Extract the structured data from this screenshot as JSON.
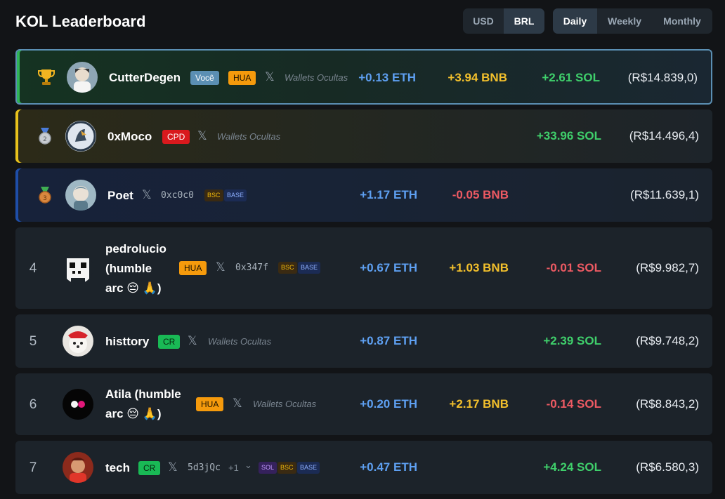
{
  "header": {
    "title": "KOL Leaderboard"
  },
  "currency_toggle": [
    {
      "label": "USD",
      "active": false
    },
    {
      "label": "BRL",
      "active": true
    }
  ],
  "period_toggle": [
    {
      "label": "Daily",
      "active": true
    },
    {
      "label": "Weekly",
      "active": false
    },
    {
      "label": "Monthly",
      "active": false
    }
  ],
  "rows": [
    {
      "rank_icon": "trophy-icon",
      "name": "CutterDegen",
      "badges": [
        "Você",
        "HUA"
      ],
      "wallet": "Wallets Ocultas",
      "eth": "+0.13 ETH",
      "bnb": "+3.94 BNB",
      "sol": "+2.61 SOL",
      "total": "(R$14.839,0)"
    },
    {
      "rank_icon": "silver-medal-icon",
      "name": "0xMoco",
      "badges": [
        "CPD"
      ],
      "wallet": "Wallets Ocultas",
      "eth": "",
      "bnb": "",
      "sol": "+33.96 SOL",
      "total": "(R$14.496,4)"
    },
    {
      "rank_icon": "bronze-medal-icon",
      "name": "Poet",
      "badges": [],
      "wallet": "0xc0c0",
      "chains": [
        "BSC",
        "BASE"
      ],
      "eth": "+1.17 ETH",
      "bnb": "-0.05 BNB",
      "sol": "",
      "total": "(R$11.639,1)"
    },
    {
      "rank": "4",
      "name_lines": [
        "pedrolucio",
        "(humble",
        "arc 😔 🙏)"
      ],
      "badges": [
        "HUA"
      ],
      "wallet": "0x347f",
      "chains": [
        "BSC",
        "BASE"
      ],
      "eth": "+0.67 ETH",
      "bnb": "+1.03 BNB",
      "sol": "-0.01 SOL",
      "total": "(R$9.982,7)"
    },
    {
      "rank": "5",
      "name": "histtory",
      "badges": [
        "CR"
      ],
      "wallet": "Wallets Ocultas",
      "eth": "+0.87 ETH",
      "bnb": "",
      "sol": "+2.39 SOL",
      "total": "(R$9.748,2)"
    },
    {
      "rank": "6",
      "name_lines": [
        "Atila (humble",
        "arc 😔 🙏)"
      ],
      "badges": [
        "HUA"
      ],
      "wallet": "Wallets Ocultas",
      "eth": "+0.20 ETH",
      "bnb": "+2.17 BNB",
      "sol": "-0.14 SOL",
      "total": "(R$8.843,2)"
    },
    {
      "rank": "7",
      "name": "tech",
      "badges": [
        "CR"
      ],
      "wallet": "5d3jQc",
      "wallet_more": "+1",
      "chains": [
        "SOL",
        "BSC",
        "BASE"
      ],
      "eth": "+0.47 ETH",
      "bnb": "",
      "sol": "+4.24 SOL",
      "total": "(R$6.580,3)"
    }
  ],
  "icons": {
    "x": "𝕏",
    "chevron": "⌄"
  },
  "colors": {
    "eth": "#5ea0f2",
    "bnb": "#f3c02c",
    "sol_positive": "#3fcf6b",
    "negative": "#ee5a63",
    "top_border": "#5b8fb3"
  }
}
